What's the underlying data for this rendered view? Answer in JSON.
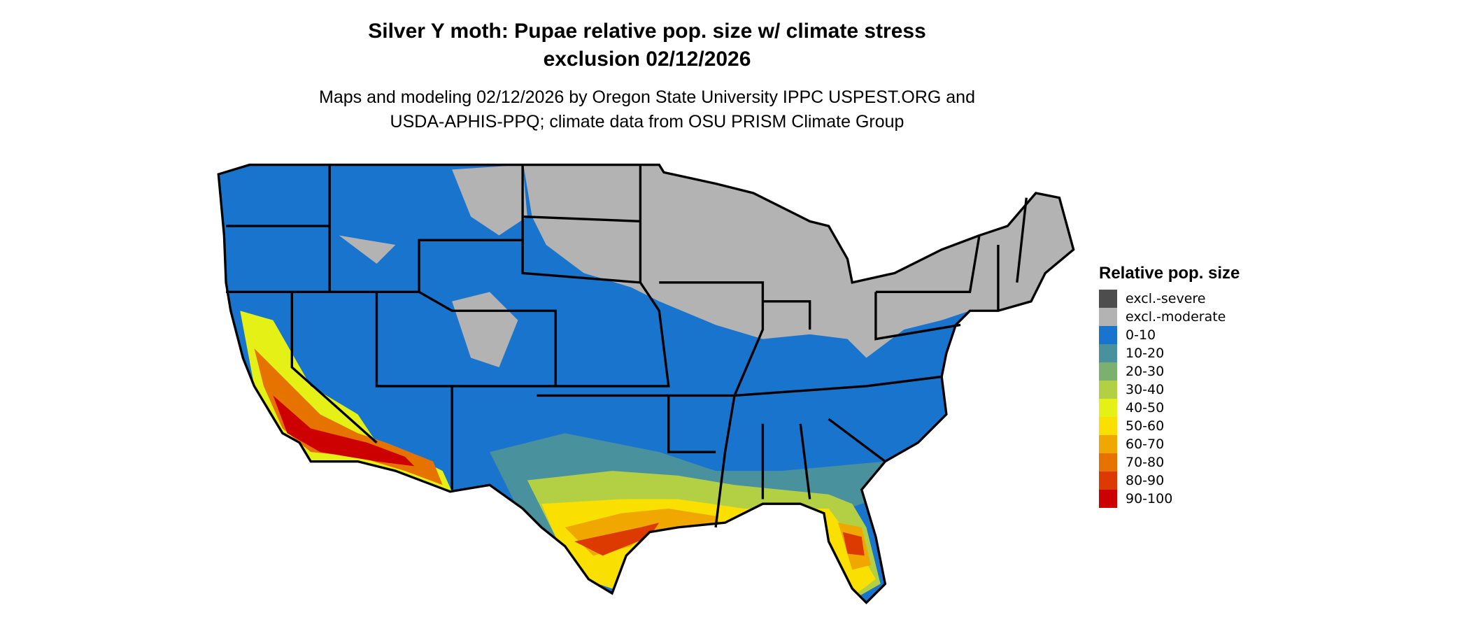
{
  "title_line1": "Silver Y moth: Pupae relative pop. size w/ climate stress",
  "title_line2": "exclusion 02/12/2026",
  "subtitle_line1": "Maps and modeling 02/12/2026 by Oregon State University IPPC USPEST.ORG and",
  "subtitle_line2": "USDA-APHIS-PPQ; climate data from OSU PRISM Climate Group",
  "legend": {
    "title": "Relative pop. size",
    "items": [
      {
        "label": "excl.-severe",
        "color": "#4d4d4d"
      },
      {
        "label": "excl.-moderate",
        "color": "#b3b3b3"
      },
      {
        "label": "0-10",
        "color": "#1874cd"
      },
      {
        "label": "10-20",
        "color": "#4a919e"
      },
      {
        "label": "20-30",
        "color": "#7bb070"
      },
      {
        "label": "30-40",
        "color": "#b3d045"
      },
      {
        "label": "40-50",
        "color": "#e5f016"
      },
      {
        "label": "50-60",
        "color": "#f9e000"
      },
      {
        "label": "60-70",
        "color": "#f0a800"
      },
      {
        "label": "70-80",
        "color": "#e67300"
      },
      {
        "label": "80-90",
        "color": "#dc3a00"
      },
      {
        "label": "90-100",
        "color": "#cc0000"
      }
    ]
  }
}
